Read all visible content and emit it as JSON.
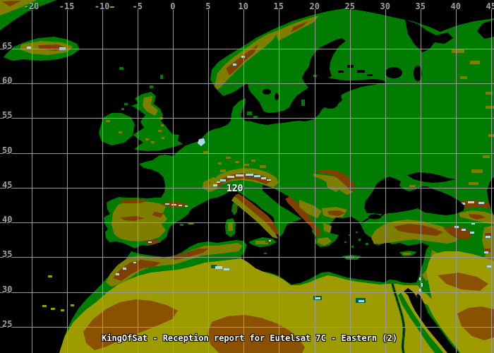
{
  "title": "KingOfSat - Reception report for Eutelsat 7C - Eastern (2)",
  "marker": {
    "label": "120"
  },
  "axes": {
    "longitude_ticks": [
      {
        "label": "-20",
        "value": -20
      },
      {
        "label": "-15",
        "value": -15
      },
      {
        "label": "-10",
        "value": -10
      },
      {
        "label": "-5",
        "value": -5
      },
      {
        "label": "0",
        "value": 0
      },
      {
        "label": "5",
        "value": 5
      },
      {
        "label": "10",
        "value": 10
      },
      {
        "label": "15",
        "value": 15
      },
      {
        "label": "20",
        "value": 20
      },
      {
        "label": "25",
        "value": 25
      },
      {
        "label": "30",
        "value": 30
      },
      {
        "label": "35",
        "value": 35
      },
      {
        "label": "40",
        "value": 40
      },
      {
        "label": "45",
        "value": 45
      }
    ],
    "latitude_ticks": [
      {
        "label": "65",
        "value": 65
      },
      {
        "label": "60",
        "value": 60
      },
      {
        "label": "55",
        "value": 55
      },
      {
        "label": "50",
        "value": 50
      },
      {
        "label": "45",
        "value": 45
      },
      {
        "label": "40",
        "value": 40
      },
      {
        "label": "35",
        "value": 35
      },
      {
        "label": "30",
        "value": 30
      },
      {
        "label": "25",
        "value": 25
      }
    ]
  },
  "palette": {
    "ocean": "#000000",
    "lowland": "#007C00",
    "upland": "#7E7E00",
    "desert": "#9C9C00",
    "mountain": "#7E4000",
    "desert_high": "#8A5200",
    "peak": "#A8DCE8",
    "depression": "#00604A",
    "grid": "#9A9A9A",
    "tick_text": "#A0A0A0",
    "title_text": "#FFFFFF",
    "marker_text": "#FFFFFF"
  }
}
